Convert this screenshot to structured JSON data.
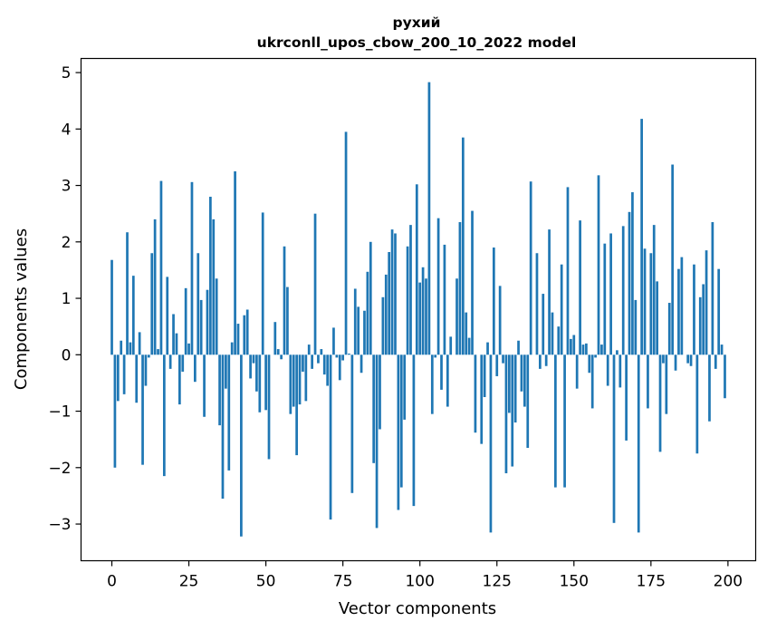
{
  "chart_data": {
    "type": "bar",
    "title": "рухий",
    "subtitle": "ukrconll_upos_cbow_200_10_2022 model",
    "xlabel": "Vector components",
    "ylabel": "Components values",
    "xlim": [
      -10,
      209
    ],
    "ylim": [
      -3.65,
      5.25
    ],
    "xticks": [
      0,
      25,
      50,
      75,
      100,
      125,
      150,
      175,
      200
    ],
    "yticks": [
      -3,
      -2,
      -1,
      0,
      1,
      2,
      3,
      4,
      5
    ],
    "xtick_labels": [
      "0",
      "25",
      "50",
      "75",
      "100",
      "125",
      "150",
      "175",
      "200"
    ],
    "ytick_labels": [
      "−3",
      "−2",
      "−1",
      "0",
      "1",
      "2",
      "3",
      "4",
      "5"
    ],
    "bar_color": "#1f77b4",
    "values": [
      1.68,
      -2.0,
      -0.82,
      0.25,
      -0.7,
      2.17,
      0.22,
      1.4,
      -0.85,
      0.4,
      -1.95,
      -0.55,
      -0.05,
      1.8,
      2.4,
      0.1,
      3.08,
      -2.15,
      1.38,
      -0.25,
      0.72,
      0.38,
      -0.88,
      -0.3,
      1.18,
      0.2,
      3.06,
      -0.48,
      1.8,
      0.97,
      -1.1,
      1.15,
      2.8,
      2.4,
      1.35,
      -1.25,
      -2.55,
      -0.6,
      -2.05,
      0.22,
      3.25,
      0.55,
      -3.22,
      0.7,
      0.8,
      -0.42,
      -0.15,
      -0.65,
      -1.02,
      2.52,
      -0.98,
      -1.85,
      0.0,
      0.58,
      0.1,
      -0.08,
      1.92,
      1.2,
      -1.05,
      -0.92,
      -1.78,
      -0.88,
      -0.3,
      -0.82,
      0.18,
      -0.25,
      2.5,
      -0.15,
      0.1,
      -0.35,
      -0.55,
      -2.92,
      0.48,
      -0.05,
      -0.45,
      -0.1,
      3.95,
      0.02,
      -2.45,
      1.17,
      0.85,
      -0.32,
      0.78,
      1.47,
      2.0,
      -1.92,
      -3.07,
      -1.32,
      1.02,
      1.42,
      1.82,
      2.22,
      2.15,
      -2.75,
      -2.35,
      -1.15,
      1.92,
      2.3,
      -2.68,
      3.02,
      1.28,
      1.55,
      1.35,
      4.83,
      -1.05,
      -0.05,
      2.42,
      -0.62,
      1.95,
      -0.92,
      0.32,
      0.0,
      1.35,
      2.35,
      3.85,
      0.75,
      0.3,
      2.55,
      -1.38,
      0.0,
      -1.58,
      -0.75,
      0.22,
      -3.15,
      1.9,
      -0.38,
      1.22,
      -0.15,
      -2.1,
      -1.03,
      -1.98,
      -1.2,
      0.25,
      -0.65,
      -0.92,
      -1.65,
      3.07,
      0.0,
      1.8,
      -0.25,
      1.08,
      -0.2,
      2.22,
      0.75,
      -2.35,
      0.5,
      1.6,
      -2.35,
      2.97,
      0.28,
      0.35,
      -0.6,
      2.38,
      0.18,
      0.2,
      -0.32,
      -0.95,
      -0.05,
      3.18,
      0.18,
      1.97,
      -0.55,
      2.15,
      -2.98,
      0.08,
      -0.58,
      2.28,
      -1.52,
      2.53,
      2.88,
      0.97,
      -3.15,
      4.18,
      1.88,
      -0.95,
      1.8,
      2.3,
      1.3,
      -1.72,
      -0.15,
      -1.05,
      0.92,
      3.37,
      -0.28,
      1.52,
      1.73,
      0.0,
      -0.15,
      -0.2,
      1.6,
      -1.75,
      1.02,
      1.25,
      1.85,
      -1.18,
      2.35,
      -0.25,
      1.52,
      0.18,
      -0.77
    ]
  }
}
